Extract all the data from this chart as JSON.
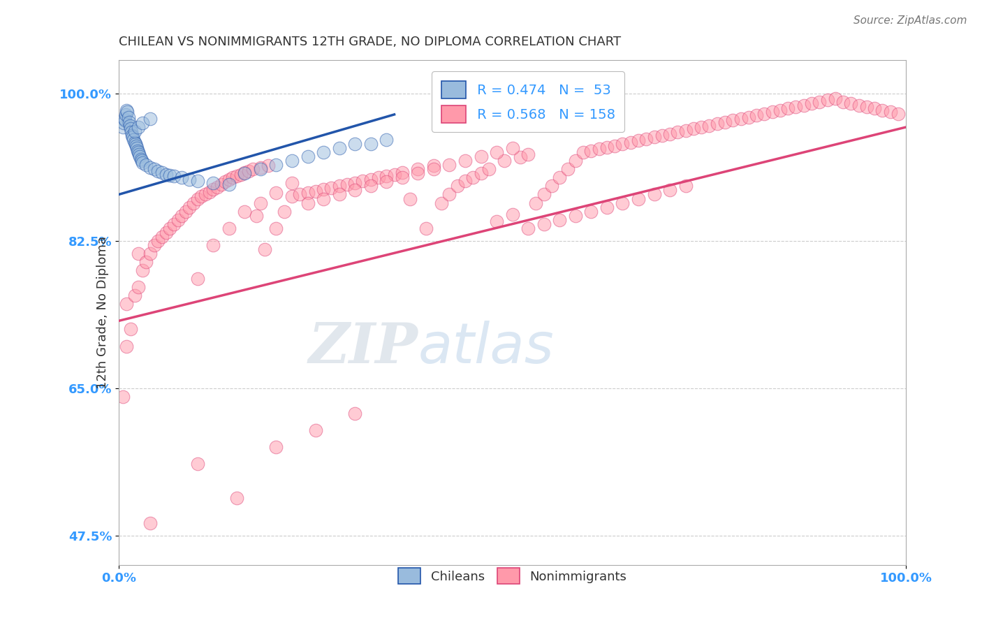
{
  "title": "CHILEAN VS NONIMMIGRANTS 12TH GRADE, NO DIPLOMA CORRELATION CHART",
  "ylabel": "12th Grade, No Diploma",
  "source_text": "Source: ZipAtlas.com",
  "watermark_zip": "ZIP",
  "watermark_atlas": "atlas",
  "xlim": [
    0.0,
    1.0
  ],
  "ylim": [
    0.44,
    1.04
  ],
  "x_ticks": [
    0.0,
    1.0
  ],
  "x_tick_labels": [
    "0.0%",
    "100.0%"
  ],
  "y_tick_labels": [
    "47.5%",
    "65.0%",
    "82.5%",
    "100.0%"
  ],
  "y_ticks": [
    0.475,
    0.65,
    0.825,
    1.0
  ],
  "legend_r1": "R = 0.474",
  "legend_n1": "N =  53",
  "legend_r2": "R = 0.568",
  "legend_n2": "N = 158",
  "blue_color": "#99BBDD",
  "pink_color": "#FF99AA",
  "line_blue": "#2255AA",
  "line_pink": "#DD4477",
  "background_color": "#FFFFFF",
  "grid_color": "#CCCCCC",
  "title_color": "#333333",
  "tick_color": "#3399FF",
  "blue_x": [
    0.005,
    0.006,
    0.007,
    0.008,
    0.009,
    0.01,
    0.011,
    0.012,
    0.013,
    0.014,
    0.015,
    0.016,
    0.017,
    0.018,
    0.019,
    0.02,
    0.021,
    0.022,
    0.023,
    0.024,
    0.025,
    0.026,
    0.027,
    0.028,
    0.029,
    0.03,
    0.035,
    0.04,
    0.045,
    0.05,
    0.055,
    0.06,
    0.065,
    0.07,
    0.08,
    0.09,
    0.1,
    0.12,
    0.14,
    0.16,
    0.18,
    0.2,
    0.22,
    0.24,
    0.26,
    0.28,
    0.3,
    0.32,
    0.34,
    0.02,
    0.025,
    0.03,
    0.04
  ],
  "blue_y": [
    0.96,
    0.965,
    0.97,
    0.968,
    0.975,
    0.98,
    0.978,
    0.972,
    0.966,
    0.962,
    0.958,
    0.954,
    0.95,
    0.948,
    0.945,
    0.942,
    0.94,
    0.938,
    0.935,
    0.932,
    0.93,
    0.928,
    0.925,
    0.922,
    0.92,
    0.918,
    0.915,
    0.912,
    0.91,
    0.908,
    0.906,
    0.904,
    0.903,
    0.902,
    0.9,
    0.898,
    0.896,
    0.894,
    0.892,
    0.905,
    0.91,
    0.915,
    0.92,
    0.925,
    0.93,
    0.935,
    0.94,
    0.94,
    0.945,
    0.955,
    0.96,
    0.965,
    0.97
  ],
  "pink_x": [
    0.005,
    0.01,
    0.01,
    0.015,
    0.02,
    0.025,
    0.025,
    0.03,
    0.035,
    0.04,
    0.045,
    0.05,
    0.055,
    0.06,
    0.065,
    0.07,
    0.075,
    0.08,
    0.085,
    0.09,
    0.095,
    0.1,
    0.105,
    0.11,
    0.115,
    0.12,
    0.125,
    0.13,
    0.135,
    0.14,
    0.145,
    0.15,
    0.155,
    0.16,
    0.165,
    0.17,
    0.175,
    0.18,
    0.185,
    0.19,
    0.2,
    0.21,
    0.22,
    0.23,
    0.24,
    0.25,
    0.26,
    0.27,
    0.28,
    0.29,
    0.3,
    0.31,
    0.32,
    0.33,
    0.34,
    0.35,
    0.36,
    0.37,
    0.38,
    0.39,
    0.4,
    0.41,
    0.42,
    0.43,
    0.44,
    0.45,
    0.46,
    0.47,
    0.48,
    0.49,
    0.5,
    0.51,
    0.52,
    0.53,
    0.54,
    0.55,
    0.56,
    0.57,
    0.58,
    0.59,
    0.6,
    0.61,
    0.62,
    0.63,
    0.64,
    0.65,
    0.66,
    0.67,
    0.68,
    0.69,
    0.7,
    0.71,
    0.72,
    0.73,
    0.74,
    0.75,
    0.76,
    0.77,
    0.78,
    0.79,
    0.8,
    0.81,
    0.82,
    0.83,
    0.84,
    0.85,
    0.86,
    0.87,
    0.88,
    0.89,
    0.9,
    0.91,
    0.92,
    0.93,
    0.94,
    0.95,
    0.96,
    0.97,
    0.98,
    0.99,
    0.04,
    0.1,
    0.15,
    0.2,
    0.25,
    0.3,
    0.1,
    0.12,
    0.14,
    0.16,
    0.18,
    0.2,
    0.22,
    0.24,
    0.26,
    0.28,
    0.3,
    0.32,
    0.34,
    0.36,
    0.38,
    0.4,
    0.42,
    0.44,
    0.46,
    0.48,
    0.5,
    0.52,
    0.54,
    0.56,
    0.58,
    0.6,
    0.62,
    0.64,
    0.66,
    0.68,
    0.7,
    0.72
  ],
  "pink_y": [
    0.64,
    0.7,
    0.75,
    0.72,
    0.76,
    0.77,
    0.81,
    0.79,
    0.8,
    0.81,
    0.82,
    0.825,
    0.83,
    0.835,
    0.84,
    0.845,
    0.85,
    0.855,
    0.86,
    0.865,
    0.87,
    0.875,
    0.878,
    0.88,
    0.883,
    0.886,
    0.889,
    0.892,
    0.895,
    0.898,
    0.9,
    0.902,
    0.904,
    0.906,
    0.908,
    0.91,
    0.855,
    0.912,
    0.815,
    0.914,
    0.84,
    0.86,
    0.878,
    0.88,
    0.882,
    0.884,
    0.886,
    0.888,
    0.89,
    0.892,
    0.894,
    0.896,
    0.898,
    0.9,
    0.902,
    0.904,
    0.906,
    0.875,
    0.91,
    0.84,
    0.914,
    0.87,
    0.88,
    0.89,
    0.896,
    0.9,
    0.905,
    0.91,
    0.848,
    0.92,
    0.856,
    0.924,
    0.928,
    0.87,
    0.88,
    0.89,
    0.9,
    0.91,
    0.92,
    0.93,
    0.932,
    0.934,
    0.936,
    0.938,
    0.94,
    0.942,
    0.944,
    0.946,
    0.948,
    0.95,
    0.952,
    0.954,
    0.956,
    0.958,
    0.96,
    0.962,
    0.964,
    0.966,
    0.968,
    0.97,
    0.972,
    0.974,
    0.976,
    0.978,
    0.98,
    0.982,
    0.984,
    0.986,
    0.988,
    0.99,
    0.992,
    0.994,
    0.99,
    0.988,
    0.986,
    0.984,
    0.982,
    0.98,
    0.978,
    0.976,
    0.49,
    0.56,
    0.52,
    0.58,
    0.6,
    0.62,
    0.78,
    0.82,
    0.84,
    0.86,
    0.87,
    0.882,
    0.894,
    0.87,
    0.875,
    0.88,
    0.885,
    0.89,
    0.895,
    0.9,
    0.905,
    0.91,
    0.915,
    0.92,
    0.925,
    0.93,
    0.935,
    0.84,
    0.845,
    0.85,
    0.855,
    0.86,
    0.865,
    0.87,
    0.875,
    0.88,
    0.885,
    0.89
  ],
  "blue_line_x": [
    0.0,
    0.35
  ],
  "blue_line_y": [
    0.88,
    0.975
  ],
  "pink_line_x": [
    0.0,
    1.0
  ],
  "pink_line_y": [
    0.73,
    0.96
  ]
}
